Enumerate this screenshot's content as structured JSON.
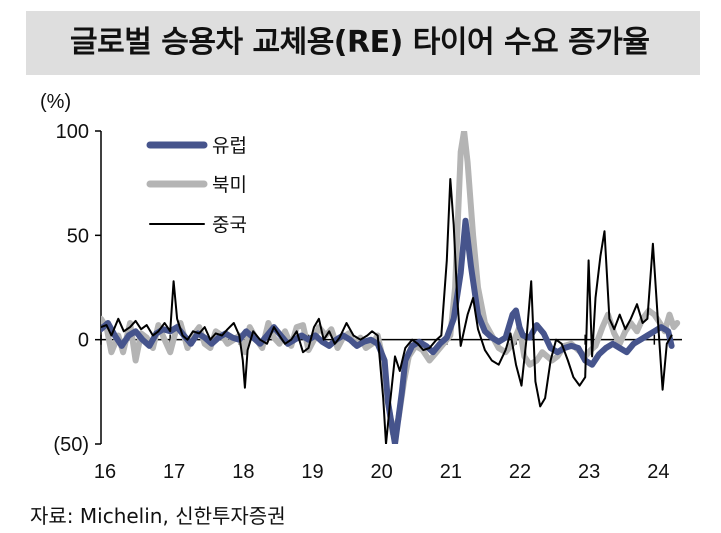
{
  "title": "글로벌 승용차 교체용(RE) 타이어 수요 증가율",
  "source": "자료: Michelin, 신한투자증권",
  "colors": {
    "europe": "#46548c",
    "north_america": "#b4b4b4",
    "china": "#000000"
  },
  "chart_data": {
    "type": "line",
    "title": "글로벌 승용차 교체용(RE) 타이어 수요 증가율",
    "ylabel": "(%)",
    "xlabel": "",
    "ylim": [
      -50,
      100
    ],
    "xlim": [
      2016.0,
      2024.4
    ],
    "y_ticks": [
      {
        "value": 100,
        "label": "100"
      },
      {
        "value": 50,
        "label": "50"
      },
      {
        "value": 0,
        "label": "0"
      },
      {
        "value": -50,
        "label": "(50)"
      }
    ],
    "x_ticks": [
      {
        "value": 2016,
        "label": "16"
      },
      {
        "value": 2017,
        "label": "17"
      },
      {
        "value": 2018,
        "label": "18"
      },
      {
        "value": 2019,
        "label": "19"
      },
      {
        "value": 2020,
        "label": "20"
      },
      {
        "value": 2021,
        "label": "21"
      },
      {
        "value": 2022,
        "label": "22"
      },
      {
        "value": 2023,
        "label": "23"
      },
      {
        "value": 2024,
        "label": "24"
      }
    ],
    "legend_position": "top-left",
    "series": [
      {
        "name": "유럽",
        "key": "europe",
        "points": [
          [
            2016.0,
            5
          ],
          [
            2016.1,
            8
          ],
          [
            2016.2,
            2
          ],
          [
            2016.3,
            -3
          ],
          [
            2016.4,
            2
          ],
          [
            2016.5,
            4
          ],
          [
            2016.6,
            0
          ],
          [
            2016.7,
            -3
          ],
          [
            2016.8,
            3
          ],
          [
            2016.9,
            5
          ],
          [
            2017.0,
            4
          ],
          [
            2017.1,
            6
          ],
          [
            2017.2,
            2
          ],
          [
            2017.3,
            -2
          ],
          [
            2017.4,
            3
          ],
          [
            2017.5,
            1
          ],
          [
            2017.6,
            -2
          ],
          [
            2017.7,
            1
          ],
          [
            2017.8,
            3
          ],
          [
            2017.9,
            1
          ],
          [
            2018.0,
            0
          ],
          [
            2018.1,
            4
          ],
          [
            2018.2,
            1
          ],
          [
            2018.3,
            -2
          ],
          [
            2018.4,
            2
          ],
          [
            2018.5,
            6
          ],
          [
            2018.6,
            2
          ],
          [
            2018.7,
            -2
          ],
          [
            2018.8,
            0
          ],
          [
            2018.9,
            2
          ],
          [
            2019.0,
            0
          ],
          [
            2019.1,
            2
          ],
          [
            2019.2,
            -1
          ],
          [
            2019.3,
            -3
          ],
          [
            2019.4,
            0
          ],
          [
            2019.5,
            2
          ],
          [
            2019.6,
            0
          ],
          [
            2019.7,
            -3
          ],
          [
            2019.8,
            -1
          ],
          [
            2019.9,
            0
          ],
          [
            2020.0,
            -2
          ],
          [
            2020.1,
            -10
          ],
          [
            2020.15,
            -30
          ],
          [
            2020.25,
            -50
          ],
          [
            2020.35,
            -25
          ],
          [
            2020.4,
            -10
          ],
          [
            2020.5,
            -3
          ],
          [
            2020.6,
            -1
          ],
          [
            2020.7,
            -3
          ],
          [
            2020.8,
            -6
          ],
          [
            2020.9,
            -2
          ],
          [
            2021.0,
            1
          ],
          [
            2021.1,
            10
          ],
          [
            2021.2,
            32
          ],
          [
            2021.27,
            57
          ],
          [
            2021.35,
            35
          ],
          [
            2021.45,
            12
          ],
          [
            2021.55,
            4
          ],
          [
            2021.65,
            1
          ],
          [
            2021.75,
            -1
          ],
          [
            2021.85,
            1
          ],
          [
            2021.95,
            12
          ],
          [
            2022.0,
            14
          ],
          [
            2022.05,
            6
          ],
          [
            2022.1,
            2
          ],
          [
            2022.2,
            1
          ],
          [
            2022.3,
            7
          ],
          [
            2022.4,
            3
          ],
          [
            2022.5,
            -4
          ],
          [
            2022.6,
            -6
          ],
          [
            2022.7,
            -4
          ],
          [
            2022.8,
            -3
          ],
          [
            2022.9,
            -4
          ],
          [
            2023.0,
            -10
          ],
          [
            2023.1,
            -12
          ],
          [
            2023.2,
            -7
          ],
          [
            2023.3,
            -4
          ],
          [
            2023.4,
            -2
          ],
          [
            2023.5,
            -4
          ],
          [
            2023.6,
            -6
          ],
          [
            2023.7,
            -2
          ],
          [
            2023.8,
            0
          ],
          [
            2023.9,
            2
          ],
          [
            2024.0,
            4
          ],
          [
            2024.1,
            6
          ],
          [
            2024.2,
            4
          ],
          [
            2024.25,
            -3
          ]
        ]
      },
      {
        "name": "북미",
        "key": "north_america",
        "points": [
          [
            2016.0,
            10
          ],
          [
            2016.08,
            6
          ],
          [
            2016.15,
            -6
          ],
          [
            2016.25,
            2
          ],
          [
            2016.32,
            -6
          ],
          [
            2016.42,
            8
          ],
          [
            2016.5,
            -10
          ],
          [
            2016.58,
            3
          ],
          [
            2016.66,
            1
          ],
          [
            2016.75,
            -4
          ],
          [
            2016.83,
            7
          ],
          [
            2016.92,
            0
          ],
          [
            2017.0,
            -6
          ],
          [
            2017.08,
            4
          ],
          [
            2017.15,
            8
          ],
          [
            2017.25,
            -4
          ],
          [
            2017.33,
            2
          ],
          [
            2017.42,
            6
          ],
          [
            2017.5,
            -2
          ],
          [
            2017.58,
            -4
          ],
          [
            2017.66,
            4
          ],
          [
            2017.75,
            2
          ],
          [
            2017.83,
            -2
          ],
          [
            2017.92,
            0
          ],
          [
            2018.0,
            2
          ],
          [
            2018.08,
            -6
          ],
          [
            2018.15,
            6
          ],
          [
            2018.25,
            0
          ],
          [
            2018.33,
            -4
          ],
          [
            2018.42,
            8
          ],
          [
            2018.5,
            1
          ],
          [
            2018.58,
            -2
          ],
          [
            2018.66,
            4
          ],
          [
            2018.75,
            -3
          ],
          [
            2018.83,
            6
          ],
          [
            2018.92,
            7
          ],
          [
            2019.0,
            -5
          ],
          [
            2019.08,
            0
          ],
          [
            2019.15,
            6
          ],
          [
            2019.25,
            2
          ],
          [
            2019.33,
            5
          ],
          [
            2019.42,
            -4
          ],
          [
            2019.5,
            1
          ],
          [
            2019.58,
            3
          ],
          [
            2019.66,
            -2
          ],
          [
            2019.75,
            1
          ],
          [
            2019.83,
            -4
          ],
          [
            2019.92,
            -2
          ],
          [
            2020.0,
            2
          ],
          [
            2020.08,
            -10
          ],
          [
            2020.15,
            -30
          ],
          [
            2020.22,
            -45
          ],
          [
            2020.3,
            -38
          ],
          [
            2020.38,
            -20
          ],
          [
            2020.45,
            -8
          ],
          [
            2020.55,
            -3
          ],
          [
            2020.65,
            -5
          ],
          [
            2020.75,
            -10
          ],
          [
            2020.85,
            -6
          ],
          [
            2020.95,
            -2
          ],
          [
            2021.05,
            2
          ],
          [
            2021.12,
            25
          ],
          [
            2021.2,
            90
          ],
          [
            2021.25,
            100
          ],
          [
            2021.3,
            85
          ],
          [
            2021.38,
            50
          ],
          [
            2021.45,
            25
          ],
          [
            2021.55,
            8
          ],
          [
            2021.65,
            2
          ],
          [
            2021.75,
            -4
          ],
          [
            2021.85,
            -6
          ],
          [
            2021.95,
            -2
          ],
          [
            2022.05,
            6
          ],
          [
            2022.12,
            -8
          ],
          [
            2022.2,
            -12
          ],
          [
            2022.3,
            -10
          ],
          [
            2022.38,
            -6
          ],
          [
            2022.45,
            -8
          ],
          [
            2022.52,
            -10
          ],
          [
            2022.6,
            -8
          ],
          [
            2022.7,
            -3
          ],
          [
            2022.8,
            -2
          ],
          [
            2022.9,
            -5
          ],
          [
            2023.0,
            -8
          ],
          [
            2023.08,
            -5
          ],
          [
            2023.15,
            -3
          ],
          [
            2023.25,
            6
          ],
          [
            2023.33,
            12
          ],
          [
            2023.42,
            3
          ],
          [
            2023.5,
            -2
          ],
          [
            2023.58,
            4
          ],
          [
            2023.66,
            8
          ],
          [
            2023.75,
            4
          ],
          [
            2023.83,
            10
          ],
          [
            2023.92,
            14
          ],
          [
            2024.0,
            12
          ],
          [
            2024.08,
            8
          ],
          [
            2024.15,
            4
          ],
          [
            2024.22,
            12
          ],
          [
            2024.28,
            6
          ],
          [
            2024.33,
            8
          ]
        ]
      },
      {
        "name": "중국",
        "key": "china",
        "points": [
          [
            2016.0,
            6
          ],
          [
            2016.08,
            7
          ],
          [
            2016.15,
            2
          ],
          [
            2016.25,
            10
          ],
          [
            2016.33,
            4
          ],
          [
            2016.42,
            6
          ],
          [
            2016.5,
            9
          ],
          [
            2016.58,
            5
          ],
          [
            2016.66,
            7
          ],
          [
            2016.75,
            2
          ],
          [
            2016.83,
            4
          ],
          [
            2016.92,
            8
          ],
          [
            2017.0,
            4
          ],
          [
            2017.05,
            28
          ],
          [
            2017.1,
            10
          ],
          [
            2017.18,
            2
          ],
          [
            2017.25,
            0
          ],
          [
            2017.33,
            4
          ],
          [
            2017.42,
            3
          ],
          [
            2017.5,
            6
          ],
          [
            2017.58,
            0
          ],
          [
            2017.66,
            3
          ],
          [
            2017.75,
            2
          ],
          [
            2017.83,
            5
          ],
          [
            2017.92,
            8
          ],
          [
            2018.0,
            2
          ],
          [
            2018.05,
            -10
          ],
          [
            2018.08,
            -23
          ],
          [
            2018.12,
            -5
          ],
          [
            2018.2,
            4
          ],
          [
            2018.3,
            0
          ],
          [
            2018.4,
            -2
          ],
          [
            2018.5,
            6
          ],
          [
            2018.58,
            2
          ],
          [
            2018.66,
            -2
          ],
          [
            2018.75,
            0
          ],
          [
            2018.83,
            4
          ],
          [
            2018.92,
            -6
          ],
          [
            2019.0,
            -4
          ],
          [
            2019.08,
            6
          ],
          [
            2019.15,
            10
          ],
          [
            2019.22,
            0
          ],
          [
            2019.3,
            4
          ],
          [
            2019.38,
            -2
          ],
          [
            2019.45,
            1
          ],
          [
            2019.55,
            8
          ],
          [
            2019.65,
            2
          ],
          [
            2019.75,
            0
          ],
          [
            2019.85,
            2
          ],
          [
            2019.92,
            4
          ],
          [
            2020.0,
            2
          ],
          [
            2020.08,
            -28
          ],
          [
            2020.12,
            -50
          ],
          [
            2020.18,
            -30
          ],
          [
            2020.25,
            -8
          ],
          [
            2020.32,
            -15
          ],
          [
            2020.4,
            -4
          ],
          [
            2020.5,
            0
          ],
          [
            2020.58,
            -2
          ],
          [
            2020.66,
            -5
          ],
          [
            2020.75,
            -4
          ],
          [
            2020.85,
            0
          ],
          [
            2020.92,
            2
          ],
          [
            2021.0,
            38
          ],
          [
            2021.05,
            77
          ],
          [
            2021.1,
            55
          ],
          [
            2021.15,
            20
          ],
          [
            2021.2,
            -3
          ],
          [
            2021.3,
            12
          ],
          [
            2021.38,
            20
          ],
          [
            2021.45,
            5
          ],
          [
            2021.55,
            -5
          ],
          [
            2021.65,
            -10
          ],
          [
            2021.75,
            -12
          ],
          [
            2021.85,
            -5
          ],
          [
            2021.92,
            3
          ],
          [
            2022.0,
            -12
          ],
          [
            2022.08,
            -22
          ],
          [
            2022.15,
            0
          ],
          [
            2022.22,
            28
          ],
          [
            2022.28,
            -20
          ],
          [
            2022.35,
            -32
          ],
          [
            2022.42,
            -28
          ],
          [
            2022.5,
            -10
          ],
          [
            2022.58,
            0
          ],
          [
            2022.66,
            -2
          ],
          [
            2022.75,
            -10
          ],
          [
            2022.83,
            -18
          ],
          [
            2022.92,
            -22
          ],
          [
            2023.0,
            -18
          ],
          [
            2023.05,
            38
          ],
          [
            2023.1,
            -8
          ],
          [
            2023.15,
            20
          ],
          [
            2023.22,
            40
          ],
          [
            2023.28,
            52
          ],
          [
            2023.35,
            10
          ],
          [
            2023.42,
            5
          ],
          [
            2023.5,
            12
          ],
          [
            2023.58,
            5
          ],
          [
            2023.66,
            10
          ],
          [
            2023.75,
            17
          ],
          [
            2023.83,
            8
          ],
          [
            2023.9,
            10
          ],
          [
            2023.98,
            46
          ],
          [
            2024.05,
            10
          ],
          [
            2024.12,
            -24
          ],
          [
            2024.18,
            -2
          ],
          [
            2024.25,
            2
          ]
        ]
      }
    ]
  }
}
